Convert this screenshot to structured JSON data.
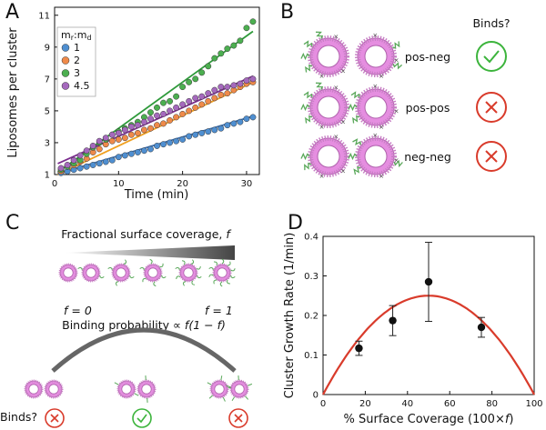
{
  "panels": {
    "a": "A",
    "b": "B",
    "c": "C",
    "d": "D"
  },
  "colors": {
    "blue": "#4f8fd1",
    "orange": "#ef8a4a",
    "green": "#4caf50",
    "purple": "#a569bd",
    "pink": "#e58ee0",
    "ring": "#c77ec4",
    "red": "#d93b2b",
    "check": "#3cb43c",
    "strand": "#5aa85a"
  },
  "chart_data": [
    {
      "type": "scatter",
      "panel": "A",
      "title": "",
      "xlabel": "Time (min)",
      "ylabel": "Liposomes per cluster",
      "xlim": [
        0,
        32
      ],
      "ylim": [
        1,
        11.5
      ],
      "xticks": [
        "0",
        "10",
        "20",
        "30"
      ],
      "yticks": [
        "1",
        "3",
        "5",
        "7",
        "9",
        "11"
      ],
      "legend_title": "mᵣ:mᵈ",
      "legend_title_main": "m",
      "legend_title_sub1": "r",
      "legend_title_sep": ":m",
      "legend_title_sub2": "d",
      "legend_position": "top-left",
      "series": [
        {
          "name": "1",
          "color": "blue",
          "fit": [
            1.0,
            0.118
          ],
          "x": [
            1,
            2,
            3,
            4,
            5,
            6,
            7,
            8,
            9,
            10,
            11,
            12,
            13,
            14,
            15,
            16,
            17,
            18,
            19,
            20,
            21,
            22,
            23,
            24,
            25,
            26,
            27,
            28,
            29,
            30,
            31
          ],
          "y": [
            1.1,
            1.2,
            1.3,
            1.4,
            1.5,
            1.6,
            1.7,
            1.8,
            1.9,
            2.1,
            2.2,
            2.3,
            2.4,
            2.5,
            2.6,
            2.8,
            2.9,
            3.0,
            3.1,
            3.2,
            3.4,
            3.5,
            3.6,
            3.7,
            3.8,
            3.9,
            4.1,
            4.2,
            4.3,
            4.5,
            4.6
          ]
        },
        {
          "name": "2",
          "color": "orange",
          "fit": [
            0.9,
            0.19
          ],
          "x": [
            1,
            2,
            3,
            4,
            5,
            6,
            7,
            8,
            9,
            10,
            11,
            12,
            13,
            14,
            15,
            16,
            17,
            18,
            19,
            20,
            21,
            22,
            23,
            24,
            25,
            26,
            27,
            28,
            29,
            30,
            31
          ],
          "y": [
            1.2,
            1.5,
            1.6,
            1.8,
            2.0,
            2.4,
            2.6,
            2.9,
            3.1,
            3.2,
            3.3,
            3.5,
            3.6,
            3.8,
            3.9,
            4.1,
            4.2,
            4.4,
            4.6,
            4.8,
            5.0,
            5.2,
            5.4,
            5.6,
            5.8,
            6.0,
            6.1,
            6.3,
            6.5,
            6.7,
            6.8
          ]
        },
        {
          "name": "3",
          "color": "green",
          "fit": [
            1.0,
            0.29
          ],
          "x": [
            1,
            2,
            3,
            4,
            5,
            6,
            7,
            8,
            9,
            10,
            11,
            12,
            13,
            14,
            15,
            16,
            17,
            18,
            19,
            20,
            21,
            22,
            23,
            24,
            25,
            26,
            27,
            28,
            29,
            30,
            31
          ],
          "y": [
            1.3,
            1.5,
            1.7,
            1.9,
            2.3,
            2.7,
            3.0,
            3.2,
            3.5,
            3.7,
            3.9,
            4.1,
            4.3,
            4.6,
            4.9,
            5.2,
            5.5,
            5.6,
            5.9,
            6.5,
            6.8,
            7.0,
            7.4,
            7.8,
            8.3,
            8.6,
            8.9,
            9.1,
            9.4,
            10.2,
            10.6
          ]
        },
        {
          "name": "4.5",
          "color": "purple",
          "fit": [
            1.6,
            0.18
          ],
          "x": [
            1,
            2,
            3,
            4,
            5,
            6,
            7,
            8,
            9,
            10,
            11,
            12,
            13,
            14,
            15,
            16,
            17,
            18,
            19,
            20,
            21,
            22,
            23,
            24,
            25,
            26,
            27,
            28,
            29,
            30,
            31
          ],
          "y": [
            1.4,
            1.6,
            1.9,
            2.2,
            2.5,
            2.8,
            3.1,
            3.3,
            3.5,
            3.6,
            3.8,
            4.0,
            4.1,
            4.3,
            4.5,
            4.7,
            4.8,
            5.0,
            5.2,
            5.4,
            5.6,
            5.8,
            5.9,
            6.1,
            6.3,
            6.5,
            6.5,
            6.6,
            6.7,
            6.9,
            7.0
          ]
        }
      ]
    },
    {
      "type": "scatter",
      "panel": "D",
      "title": "",
      "xlabel_main": "% Surface Coverage (100×",
      "xlabel_var": "f",
      "xlabel_end": ")",
      "ylabel": "Cluster Growth Rate (1/min)",
      "xlim": [
        0,
        100
      ],
      "ylim": [
        0,
        0.4
      ],
      "xticks": [
        "0",
        "20",
        "40",
        "60",
        "80",
        "100"
      ],
      "yticks": [
        "0",
        "0.1",
        "0.2",
        "0.3",
        "0.4"
      ],
      "points": [
        {
          "x": 17,
          "y": 0.117,
          "err": 0.018
        },
        {
          "x": 33,
          "y": 0.187,
          "err": 0.038
        },
        {
          "x": 50,
          "y": 0.285,
          "err": 0.1
        },
        {
          "x": 75,
          "y": 0.17,
          "err": 0.025
        }
      ],
      "fit": {
        "type": "parabola",
        "peak": 0.25,
        "color": "red"
      }
    }
  ],
  "panel_b": {
    "header": "Binds?",
    "rows": [
      {
        "label": "pos-neg",
        "result": "yes"
      },
      {
        "label": "pos-pos",
        "result": "no"
      },
      {
        "label": "neg-neg",
        "result": "no"
      }
    ]
  },
  "panel_c": {
    "coverage_title": "Fractional surface coverage,",
    "coverage_var": "f",
    "f0_label": "f = 0",
    "f1_label": "f = 1",
    "prob_label": "Binding probability ∝",
    "prob_expr": "f(1 − f)",
    "binds_label": "Binds?"
  }
}
